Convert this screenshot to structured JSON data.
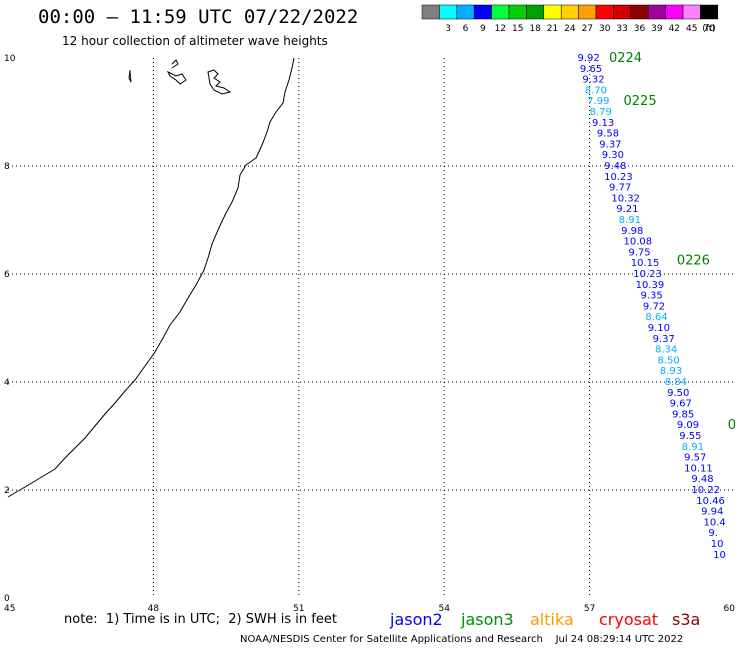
{
  "header": {
    "title": "00:00 – 11:59 UTC 07/22/2022",
    "subtitle": "12 hour collection of altimeter wave heights"
  },
  "legend": {
    "unit": "(ft)",
    "bins": [
      {
        "label": "",
        "color": "#7f7f7f"
      },
      {
        "label": "3",
        "color": "#00ffff"
      },
      {
        "label": "6",
        "color": "#00b0ff"
      },
      {
        "label": "9",
        "color": "#0000ff"
      },
      {
        "label": "12",
        "color": "#00ff40"
      },
      {
        "label": "15",
        "color": "#00d000"
      },
      {
        "label": "18",
        "color": "#00a000"
      },
      {
        "label": "21",
        "color": "#ffff00"
      },
      {
        "label": "24",
        "color": "#ffd000"
      },
      {
        "label": "27",
        "color": "#ffa000"
      },
      {
        "label": "30",
        "color": "#ff0000"
      },
      {
        "label": "33",
        "color": "#d00000"
      },
      {
        "label": "36",
        "color": "#900000"
      },
      {
        "label": "39",
        "color": "#a000a0"
      },
      {
        "label": "42",
        "color": "#ff00ff"
      },
      {
        "label": "45",
        "color": "#ff80ff"
      },
      {
        "label": "70",
        "color": "#000000"
      }
    ]
  },
  "map": {
    "lon_ticks": [
      "45",
      "48",
      "51",
      "54",
      "57",
      "60"
    ],
    "lat_ticks": [
      "0",
      "2",
      "4",
      "6",
      "8",
      "10"
    ],
    "lon_range": [
      45,
      60
    ],
    "lat_range": [
      0,
      10
    ]
  },
  "track": {
    "times": [
      {
        "text": "0224",
        "lon": 57.4,
        "lat": 10.0
      },
      {
        "text": "0225",
        "lon": 57.7,
        "lat": 9.2
      },
      {
        "text": "0226",
        "lon": 58.8,
        "lat": 6.25
      },
      {
        "text": "0",
        "lon": 59.85,
        "lat": 3.2
      }
    ],
    "points": [
      {
        "v": "9.92",
        "lon": 56.75,
        "lat": 10.0,
        "c": "#0000ff"
      },
      {
        "v": "9.65",
        "lon": 56.8,
        "lat": 9.8,
        "c": "#0000ff"
      },
      {
        "v": "9.32",
        "lon": 56.85,
        "lat": 9.6,
        "c": "#0000ff"
      },
      {
        "v": "8.70",
        "lon": 56.9,
        "lat": 9.4,
        "c": "#00b0ff"
      },
      {
        "v": "7.99",
        "lon": 56.95,
        "lat": 9.2,
        "c": "#00b0ff"
      },
      {
        "v": "8.79",
        "lon": 57.0,
        "lat": 9.0,
        "c": "#00b0ff"
      },
      {
        "v": "9.13",
        "lon": 57.05,
        "lat": 8.8,
        "c": "#0000ff"
      },
      {
        "v": "9.58",
        "lon": 57.15,
        "lat": 8.6,
        "c": "#0000ff"
      },
      {
        "v": "9.37",
        "lon": 57.2,
        "lat": 8.4,
        "c": "#0000ff"
      },
      {
        "v": "9.30",
        "lon": 57.25,
        "lat": 8.2,
        "c": "#0000ff"
      },
      {
        "v": "9.48",
        "lon": 57.3,
        "lat": 8.0,
        "c": "#0000ff"
      },
      {
        "v": "10.23",
        "lon": 57.3,
        "lat": 7.8,
        "c": "#0000ff"
      },
      {
        "v": "9.77",
        "lon": 57.4,
        "lat": 7.6,
        "c": "#0000ff"
      },
      {
        "v": "10.32",
        "lon": 57.45,
        "lat": 7.4,
        "c": "#0000ff"
      },
      {
        "v": "9.21",
        "lon": 57.55,
        "lat": 7.2,
        "c": "#0000ff"
      },
      {
        "v": "8.91",
        "lon": 57.6,
        "lat": 7.0,
        "c": "#00b0ff"
      },
      {
        "v": "9.98",
        "lon": 57.65,
        "lat": 6.8,
        "c": "#0000ff"
      },
      {
        "v": "10.08",
        "lon": 57.7,
        "lat": 6.6,
        "c": "#0000ff"
      },
      {
        "v": "9.75",
        "lon": 57.8,
        "lat": 6.4,
        "c": "#0000ff"
      },
      {
        "v": "10.15",
        "lon": 57.85,
        "lat": 6.2,
        "c": "#0000ff"
      },
      {
        "v": "10.23",
        "lon": 57.9,
        "lat": 6.0,
        "c": "#0000ff"
      },
      {
        "v": "10.39",
        "lon": 57.95,
        "lat": 5.8,
        "c": "#0000ff"
      },
      {
        "v": "9.35",
        "lon": 58.05,
        "lat": 5.6,
        "c": "#0000ff"
      },
      {
        "v": "9.72",
        "lon": 58.1,
        "lat": 5.4,
        "c": "#0000ff"
      },
      {
        "v": "8.64",
        "lon": 58.15,
        "lat": 5.2,
        "c": "#00b0ff"
      },
      {
        "v": "9.10",
        "lon": 58.2,
        "lat": 5.0,
        "c": "#0000ff"
      },
      {
        "v": "9.37",
        "lon": 58.3,
        "lat": 4.8,
        "c": "#0000ff"
      },
      {
        "v": "8.34",
        "lon": 58.35,
        "lat": 4.6,
        "c": "#00b0ff"
      },
      {
        "v": "8.50",
        "lon": 58.4,
        "lat": 4.4,
        "c": "#00b0ff"
      },
      {
        "v": "8.93",
        "lon": 58.45,
        "lat": 4.2,
        "c": "#00b0ff"
      },
      {
        "v": "8.84",
        "lon": 58.55,
        "lat": 4.0,
        "c": "#00b0ff"
      },
      {
        "v": "9.50",
        "lon": 58.6,
        "lat": 3.8,
        "c": "#0000ff"
      },
      {
        "v": "9.67",
        "lon": 58.65,
        "lat": 3.6,
        "c": "#0000ff"
      },
      {
        "v": "9.85",
        "lon": 58.7,
        "lat": 3.4,
        "c": "#0000ff"
      },
      {
        "v": "9.09",
        "lon": 58.8,
        "lat": 3.2,
        "c": "#0000ff"
      },
      {
        "v": "9.55",
        "lon": 58.85,
        "lat": 3.0,
        "c": "#0000ff"
      },
      {
        "v": "8.91",
        "lon": 58.9,
        "lat": 2.8,
        "c": "#00b0ff"
      },
      {
        "v": "9.57",
        "lon": 58.95,
        "lat": 2.6,
        "c": "#0000ff"
      },
      {
        "v": "10.11",
        "lon": 58.95,
        "lat": 2.4,
        "c": "#0000ff"
      },
      {
        "v": "9.48",
        "lon": 59.1,
        "lat": 2.2,
        "c": "#0000ff"
      },
      {
        "v": "10.22",
        "lon": 59.1,
        "lat": 2.0,
        "c": "#0000ff"
      },
      {
        "v": "10.46",
        "lon": 59.2,
        "lat": 1.8,
        "c": "#0000ff"
      },
      {
        "v": "9.94",
        "lon": 59.3,
        "lat": 1.6,
        "c": "#0000ff"
      },
      {
        "v": "10.4",
        "lon": 59.35,
        "lat": 1.4,
        "c": "#0000ff"
      },
      {
        "v": "9.",
        "lon": 59.45,
        "lat": 1.2,
        "c": "#0000ff"
      },
      {
        "v": "10",
        "lon": 59.5,
        "lat": 1.0,
        "c": "#0000ff"
      },
      {
        "v": "10",
        "lon": 59.55,
        "lat": 0.8,
        "c": "#0000ff"
      }
    ]
  },
  "footer": {
    "note": "note:  1) Time is in UTC;  2) SWH is in feet",
    "satellites": [
      {
        "name": "jason2",
        "color": "#0000ff"
      },
      {
        "name": "jason3",
        "color": "#009000"
      },
      {
        "name": "altika",
        "color": "#ff9900"
      },
      {
        "name": "cryosat",
        "color": "#ff0000"
      },
      {
        "name": "s3a",
        "color": "#900000"
      }
    ],
    "credit": "NOAA/NESDIS Center for Satellite Applications and Research    Jul 24 08:29:14 UTC 2022"
  }
}
